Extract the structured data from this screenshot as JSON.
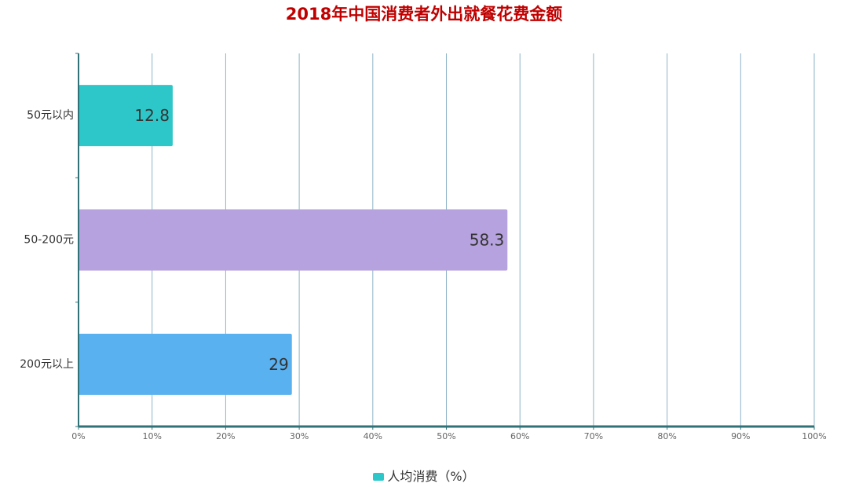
{
  "chart_data": {
    "type": "bar",
    "orientation": "horizontal",
    "title": "2018年中国消费者外出就餐花费金额",
    "categories": [
      "50元以内",
      "50-200元",
      "200元以上"
    ],
    "series": [
      {
        "name": "人均消费（%）",
        "values": [
          12.8,
          58.3,
          29
        ],
        "data_labels": [
          "12.8",
          "58.3",
          "29"
        ]
      }
    ],
    "bar_colors": [
      "#2ec7c9",
      "#b6a2de",
      "#5ab1ef"
    ],
    "legend_color": "#2ec7c9",
    "x_ticks": [
      0,
      10,
      20,
      30,
      40,
      50,
      60,
      70,
      80,
      90,
      100
    ],
    "x_tick_labels": [
      "0%",
      "10%",
      "20%",
      "30%",
      "40%",
      "50%",
      "60%",
      "70%",
      "80%",
      "90%",
      "100%"
    ],
    "xlim": [
      0,
      100
    ],
    "grid": true,
    "legend_position": "bottom-center",
    "title_color": "#c00000",
    "axis_color": "#2f7378",
    "grid_color": "#8db4c8"
  }
}
